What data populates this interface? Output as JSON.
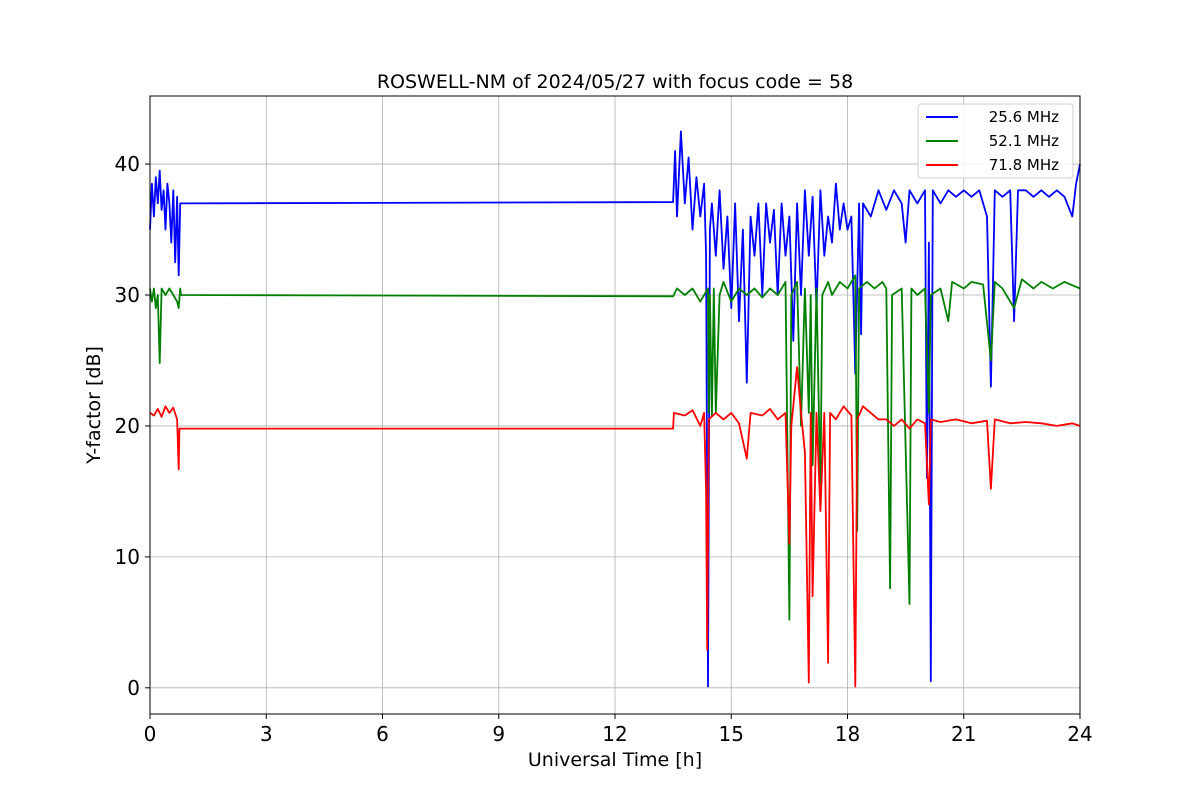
{
  "chart_data": {
    "type": "line",
    "title": "ROSWELL-NM of 2024/05/27 with focus code = 58",
    "xlabel": "Universal Time [h]",
    "ylabel": "Y-factor [dB]",
    "xlim": [
      0,
      24
    ],
    "ylim": [
      -2,
      45.2
    ],
    "xticks": [
      0,
      3,
      6,
      9,
      12,
      15,
      18,
      21,
      24
    ],
    "yticks": [
      0,
      10,
      20,
      30,
      40
    ],
    "grid": true,
    "legend_position": "top-right",
    "series": [
      {
        "name": "25.6 MHz",
        "color": "#0000ff",
        "points": [
          [
            0,
            35
          ],
          [
            0.05,
            38.5
          ],
          [
            0.1,
            36
          ],
          [
            0.15,
            39
          ],
          [
            0.2,
            37
          ],
          [
            0.25,
            39.5
          ],
          [
            0.3,
            36.5
          ],
          [
            0.35,
            38
          ],
          [
            0.4,
            35
          ],
          [
            0.45,
            38.5
          ],
          [
            0.5,
            37
          ],
          [
            0.55,
            34
          ],
          [
            0.6,
            38
          ],
          [
            0.65,
            32.5
          ],
          [
            0.7,
            37.5
          ],
          [
            0.74,
            31.5
          ],
          [
            0.78,
            37
          ],
          [
            0.8,
            37
          ],
          [
            13.5,
            37.1
          ],
          [
            13.55,
            41
          ],
          [
            13.6,
            36
          ],
          [
            13.7,
            42.5
          ],
          [
            13.8,
            37
          ],
          [
            13.9,
            40.5
          ],
          [
            14.0,
            35
          ],
          [
            14.1,
            39
          ],
          [
            14.2,
            36
          ],
          [
            14.3,
            38.5
          ],
          [
            14.35,
            33
          ],
          [
            14.4,
            0.1
          ],
          [
            14.45,
            35
          ],
          [
            14.5,
            37
          ],
          [
            14.6,
            33
          ],
          [
            14.7,
            38
          ],
          [
            14.8,
            32
          ],
          [
            14.9,
            36
          ],
          [
            15.0,
            29
          ],
          [
            15.1,
            37
          ],
          [
            15.2,
            28
          ],
          [
            15.3,
            35
          ],
          [
            15.4,
            23.3
          ],
          [
            15.5,
            36
          ],
          [
            15.6,
            33
          ],
          [
            15.7,
            37
          ],
          [
            15.8,
            30
          ],
          [
            15.9,
            37
          ],
          [
            16.0,
            34
          ],
          [
            16.1,
            36.5
          ],
          [
            16.2,
            30
          ],
          [
            16.3,
            37
          ],
          [
            16.4,
            33
          ],
          [
            16.5,
            36
          ],
          [
            16.6,
            26.5
          ],
          [
            16.7,
            37
          ],
          [
            16.8,
            30
          ],
          [
            16.9,
            38
          ],
          [
            17.0,
            33
          ],
          [
            17.1,
            37.5
          ],
          [
            17.2,
            29
          ],
          [
            17.3,
            38
          ],
          [
            17.4,
            33
          ],
          [
            17.5,
            36
          ],
          [
            17.6,
            34
          ],
          [
            17.7,
            38.5
          ],
          [
            17.8,
            35
          ],
          [
            17.9,
            37
          ],
          [
            18.0,
            35
          ],
          [
            18.1,
            36
          ],
          [
            18.2,
            24
          ],
          [
            18.3,
            37
          ],
          [
            18.35,
            27
          ],
          [
            18.4,
            37
          ],
          [
            18.6,
            36
          ],
          [
            18.8,
            38
          ],
          [
            19.0,
            36.5
          ],
          [
            19.2,
            38
          ],
          [
            19.4,
            37
          ],
          [
            19.5,
            34
          ],
          [
            19.6,
            38
          ],
          [
            19.8,
            37
          ],
          [
            20.0,
            38
          ],
          [
            20.05,
            16
          ],
          [
            20.1,
            34
          ],
          [
            20.15,
            0.5
          ],
          [
            20.2,
            38
          ],
          [
            20.4,
            37
          ],
          [
            20.6,
            38
          ],
          [
            20.8,
            37.5
          ],
          [
            21.0,
            38
          ],
          [
            21.2,
            37.5
          ],
          [
            21.4,
            38
          ],
          [
            21.6,
            36
          ],
          [
            21.7,
            23
          ],
          [
            21.8,
            38
          ],
          [
            22.0,
            37.5
          ],
          [
            22.2,
            38
          ],
          [
            22.3,
            28
          ],
          [
            22.4,
            38
          ],
          [
            22.6,
            38
          ],
          [
            22.8,
            37.5
          ],
          [
            23.0,
            38
          ],
          [
            23.2,
            37.5
          ],
          [
            23.4,
            38
          ],
          [
            23.6,
            37.5
          ],
          [
            23.8,
            36
          ],
          [
            23.9,
            38.5
          ],
          [
            24.0,
            40
          ]
        ]
      },
      {
        "name": "52.1 MHz",
        "color": "#008000",
        "points": [
          [
            0,
            30.5
          ],
          [
            0.05,
            29.5
          ],
          [
            0.1,
            30.5
          ],
          [
            0.15,
            29
          ],
          [
            0.2,
            30
          ],
          [
            0.25,
            24.8
          ],
          [
            0.3,
            30.5
          ],
          [
            0.4,
            30
          ],
          [
            0.5,
            30.5
          ],
          [
            0.6,
            30
          ],
          [
            0.7,
            29.5
          ],
          [
            0.74,
            29
          ],
          [
            0.78,
            30.5
          ],
          [
            0.8,
            30
          ],
          [
            13.5,
            29.9
          ],
          [
            13.6,
            30.5
          ],
          [
            13.8,
            30
          ],
          [
            14.0,
            30.5
          ],
          [
            14.2,
            29.5
          ],
          [
            14.4,
            30.5
          ],
          [
            14.42,
            21
          ],
          [
            14.45,
            30
          ],
          [
            14.5,
            20.8
          ],
          [
            14.55,
            30.5
          ],
          [
            14.6,
            21
          ],
          [
            14.7,
            30
          ],
          [
            14.8,
            31
          ],
          [
            15.0,
            29.5
          ],
          [
            15.2,
            30.5
          ],
          [
            15.4,
            30
          ],
          [
            15.6,
            30.5
          ],
          [
            15.8,
            29.8
          ],
          [
            16.0,
            30.5
          ],
          [
            16.2,
            30
          ],
          [
            16.4,
            31
          ],
          [
            16.5,
            5.2
          ],
          [
            16.55,
            30
          ],
          [
            16.7,
            31
          ],
          [
            16.8,
            20
          ],
          [
            16.9,
            30.5
          ],
          [
            17.0,
            21
          ],
          [
            17.05,
            30
          ],
          [
            17.1,
            17
          ],
          [
            17.2,
            30.5
          ],
          [
            17.3,
            15
          ],
          [
            17.35,
            30
          ],
          [
            17.5,
            31
          ],
          [
            17.6,
            30
          ],
          [
            17.8,
            31
          ],
          [
            18.0,
            30.5
          ],
          [
            18.2,
            31.5
          ],
          [
            18.25,
            12
          ],
          [
            18.3,
            30.5
          ],
          [
            18.5,
            31
          ],
          [
            18.7,
            30.5
          ],
          [
            18.9,
            31
          ],
          [
            19.0,
            30.5
          ],
          [
            19.1,
            7.6
          ],
          [
            19.15,
            30
          ],
          [
            19.4,
            30.5
          ],
          [
            19.6,
            6.4
          ],
          [
            19.65,
            30.5
          ],
          [
            19.8,
            30
          ],
          [
            20.0,
            30.5
          ],
          [
            20.1,
            21
          ],
          [
            20.15,
            30
          ],
          [
            20.4,
            30.5
          ],
          [
            20.6,
            28
          ],
          [
            20.7,
            31
          ],
          [
            21.0,
            30.5
          ],
          [
            21.2,
            31
          ],
          [
            21.5,
            30.8
          ],
          [
            21.7,
            25
          ],
          [
            21.8,
            31
          ],
          [
            22.0,
            30.5
          ],
          [
            22.3,
            29
          ],
          [
            22.5,
            31.2
          ],
          [
            22.8,
            30.5
          ],
          [
            23.0,
            31
          ],
          [
            23.3,
            30.5
          ],
          [
            23.6,
            31
          ],
          [
            24.0,
            30.5
          ]
        ]
      },
      {
        "name": "71.8 MHz",
        "color": "#ff0000",
        "points": [
          [
            0,
            21
          ],
          [
            0.1,
            20.8
          ],
          [
            0.2,
            21.3
          ],
          [
            0.3,
            20.7
          ],
          [
            0.4,
            21.5
          ],
          [
            0.5,
            21
          ],
          [
            0.6,
            21.4
          ],
          [
            0.7,
            20.5
          ],
          [
            0.74,
            16.7
          ],
          [
            0.76,
            19.8
          ],
          [
            0.8,
            19.8
          ],
          [
            13.5,
            19.8
          ],
          [
            13.52,
            21
          ],
          [
            13.8,
            20.8
          ],
          [
            14.0,
            21.2
          ],
          [
            14.2,
            20
          ],
          [
            14.3,
            21
          ],
          [
            14.35,
            15
          ],
          [
            14.38,
            2.9
          ],
          [
            14.42,
            20.5
          ],
          [
            14.6,
            21
          ],
          [
            14.8,
            20.5
          ],
          [
            15.0,
            21
          ],
          [
            15.2,
            20.2
          ],
          [
            15.4,
            17.5
          ],
          [
            15.5,
            21
          ],
          [
            15.8,
            20.8
          ],
          [
            16.0,
            21.3
          ],
          [
            16.2,
            20.5
          ],
          [
            16.4,
            21
          ],
          [
            16.5,
            11
          ],
          [
            16.55,
            20
          ],
          [
            16.7,
            24.5
          ],
          [
            16.8,
            21
          ],
          [
            16.9,
            18
          ],
          [
            17.0,
            0.4
          ],
          [
            17.05,
            21
          ],
          [
            17.1,
            7
          ],
          [
            17.2,
            21
          ],
          [
            17.3,
            13.5
          ],
          [
            17.4,
            21
          ],
          [
            17.5,
            1.9
          ],
          [
            17.55,
            21
          ],
          [
            17.7,
            20.5
          ],
          [
            17.9,
            21.5
          ],
          [
            18.1,
            20.8
          ],
          [
            18.2,
            0.1
          ],
          [
            18.25,
            20.5
          ],
          [
            18.4,
            21.5
          ],
          [
            18.6,
            21
          ],
          [
            18.8,
            20.5
          ],
          [
            19.0,
            20.5
          ],
          [
            19.2,
            20
          ],
          [
            19.4,
            20.5
          ],
          [
            19.6,
            19.8
          ],
          [
            19.8,
            20.5
          ],
          [
            20.0,
            20.2
          ],
          [
            20.1,
            14
          ],
          [
            20.15,
            20.5
          ],
          [
            20.4,
            20.3
          ],
          [
            20.8,
            20.5
          ],
          [
            21.2,
            20.2
          ],
          [
            21.6,
            20.4
          ],
          [
            21.7,
            15.2
          ],
          [
            21.8,
            20.5
          ],
          [
            22.2,
            20.2
          ],
          [
            22.6,
            20.3
          ],
          [
            23.0,
            20.2
          ],
          [
            23.4,
            20
          ],
          [
            23.8,
            20.2
          ],
          [
            24.0,
            20
          ]
        ]
      }
    ]
  }
}
